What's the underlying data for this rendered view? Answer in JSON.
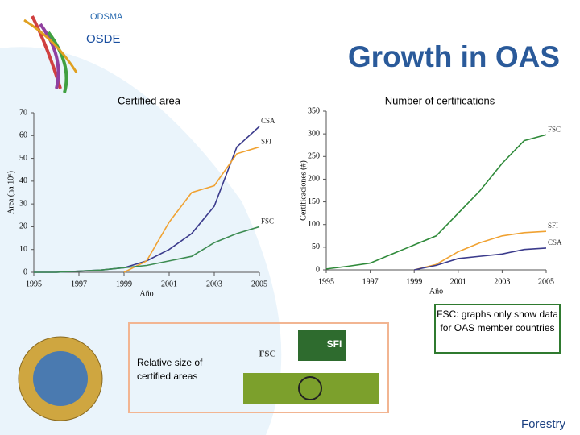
{
  "header": {
    "org": "ODSMA",
    "unit": "OSDE",
    "title": "Growth in OAS"
  },
  "chart_data": [
    {
      "type": "line",
      "title": "Certified area",
      "xlabel": "Año",
      "ylabel": "Area (ha 10⁶)",
      "x": [
        1995,
        1996,
        1997,
        1998,
        1999,
        2000,
        2001,
        2002,
        2003,
        2004,
        2005
      ],
      "xlim": [
        1995,
        2005
      ],
      "xticks": [
        1995,
        1997,
        1999,
        2001,
        2003,
        2005
      ],
      "ylim": [
        0,
        70
      ],
      "yticks": [
        0,
        10,
        20,
        30,
        40,
        50,
        60,
        70
      ],
      "series": [
        {
          "name": "CSA",
          "color": "#3b3b8c",
          "values": [
            0,
            0,
            0.5,
            1,
            2,
            5,
            10,
            17,
            29,
            55,
            64
          ]
        },
        {
          "name": "SFI",
          "color": "#f0a232",
          "values": [
            null,
            null,
            null,
            null,
            0,
            5,
            22,
            35,
            38,
            52,
            55
          ]
        },
        {
          "name": "FSC",
          "color": "#3d8c52",
          "values": [
            0,
            0,
            0.5,
            1,
            2,
            3,
            5,
            7,
            13,
            17,
            20
          ]
        }
      ]
    },
    {
      "type": "line",
      "title": "Number of certifications",
      "xlabel": "Año",
      "ylabel": "Certificaciones (#)",
      "x": [
        1995,
        1996,
        1997,
        1998,
        1999,
        2000,
        2001,
        2002,
        2003,
        2004,
        2005
      ],
      "xlim": [
        1995,
        2005
      ],
      "xticks": [
        1995,
        1997,
        1999,
        2001,
        2003,
        2005
      ],
      "ylim": [
        0,
        350
      ],
      "yticks": [
        0,
        50,
        100,
        150,
        200,
        250,
        300,
        350
      ],
      "series": [
        {
          "name": "FSC",
          "color": "#2f8a3a",
          "values": [
            2,
            8,
            15,
            35,
            55,
            75,
            125,
            175,
            235,
            285,
            298
          ]
        },
        {
          "name": "SFI",
          "color": "#f0a232",
          "values": [
            null,
            null,
            null,
            null,
            0,
            12,
            40,
            60,
            75,
            82,
            85
          ]
        },
        {
          "name": "CSA",
          "color": "#3b3b8c",
          "values": [
            null,
            null,
            null,
            null,
            0,
            10,
            25,
            30,
            35,
            45,
            48
          ]
        }
      ]
    }
  ],
  "note": "FSC: graphs only show data for OAS member countries",
  "relative": {
    "caption": "Relative size of certified areas",
    "logos": [
      "FSC",
      "SFI"
    ]
  },
  "footer": "Forestry"
}
